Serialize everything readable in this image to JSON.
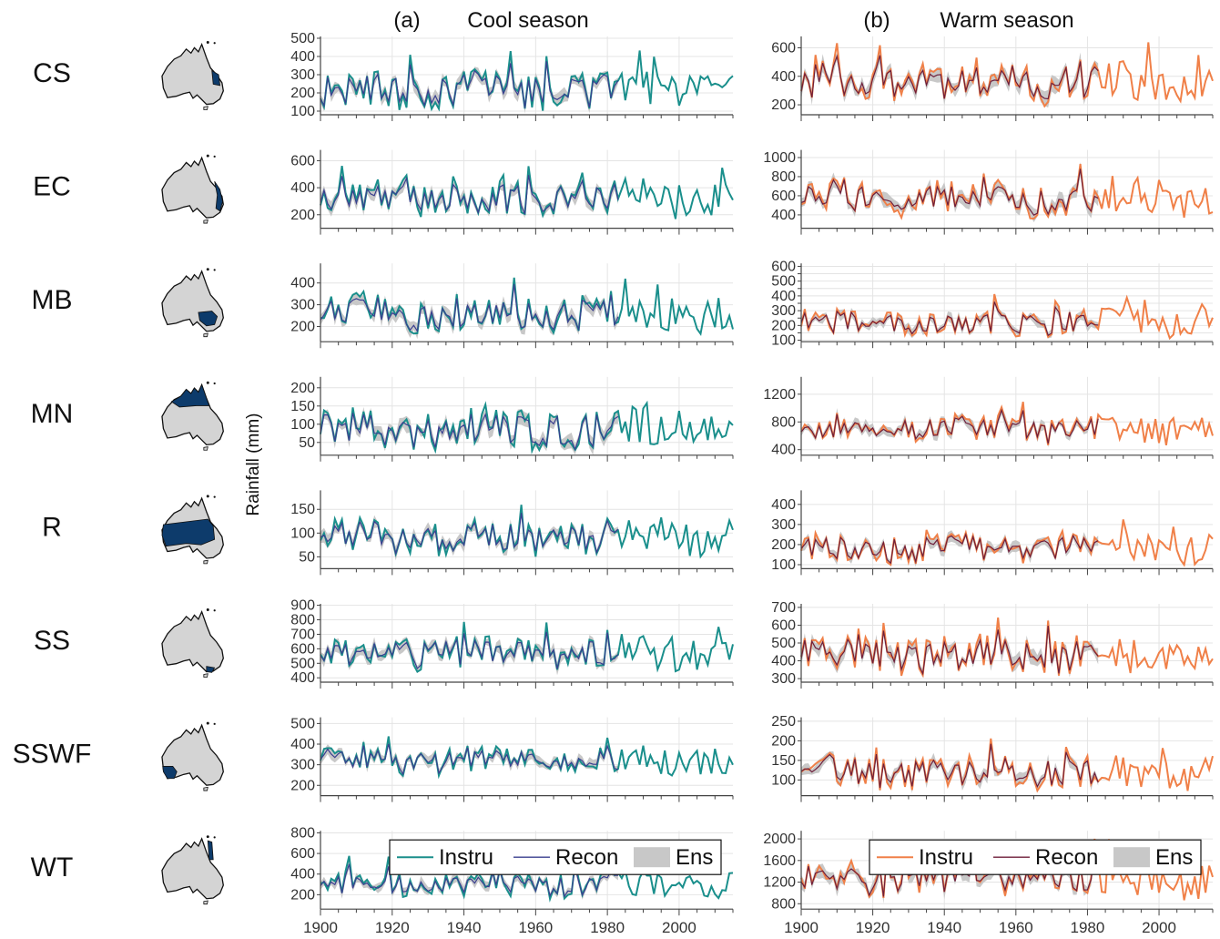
{
  "figure": {
    "panel_a": {
      "letter": "(a)",
      "title": "Cool season"
    },
    "panel_b": {
      "letter": "(b)",
      "title": "Warm season"
    },
    "y_axis_label": "Rainfall (mm)",
    "x_ticks": [
      "1900",
      "1920",
      "1940",
      "1960",
      "1980",
      "2000"
    ],
    "colors": {
      "cool_instru": "#1a8f8c",
      "cool_recon": "#3a3f8f",
      "warm_instru": "#f08048",
      "warm_recon": "#6e1e3a",
      "ens_band": "#c8c8c8",
      "region_highlight": "#0d3b6b",
      "map_fill": "#d4d4d4",
      "grid": "#e4e4e4",
      "axis": "#444444"
    },
    "legend_cool": {
      "instru": "Instru",
      "recon": "Recon",
      "ens": "Ens"
    },
    "legend_warm": {
      "instru": "Instru",
      "recon": "Recon",
      "ens": "Ens"
    }
  },
  "chart_data": [
    {
      "type": "line",
      "panel": "Cool season",
      "title": "Cool season",
      "ylabel": "Rainfall (mm)",
      "x_range": [
        1900,
        2015
      ],
      "grid": true,
      "legend_placement": "bottom-right (WT row)",
      "series_names": [
        "Instru",
        "Recon",
        "Ens"
      ],
      "regions": [
        {
          "region": "CS",
          "yticks": [
            100,
            200,
            300,
            400,
            500
          ],
          "ylim": [
            80,
            510
          ],
          "instru_mean": 215,
          "instru_amp": 85,
          "recon_mean": 210
        },
        {
          "region": "EC",
          "yticks": [
            200,
            400,
            600
          ],
          "ylim": [
            100,
            680
          ],
          "instru_mean": 320,
          "instru_amp": 110,
          "recon_mean": 310
        },
        {
          "region": "MB",
          "yticks": [
            200,
            300,
            400
          ],
          "ylim": [
            130,
            490
          ],
          "instru_mean": 265,
          "instru_amp": 70,
          "recon_mean": 260
        },
        {
          "region": "MN",
          "yticks": [
            50,
            100,
            150,
            200
          ],
          "ylim": [
            15,
            230
          ],
          "instru_mean": 85,
          "instru_amp": 45,
          "recon_mean": 80
        },
        {
          "region": "R",
          "yticks": [
            50,
            100,
            150
          ],
          "ylim": [
            25,
            190
          ],
          "instru_mean": 90,
          "instru_amp": 30,
          "recon_mean": 88
        },
        {
          "region": "SS",
          "yticks": [
            400,
            500,
            600,
            700,
            800,
            900
          ],
          "ylim": [
            370,
            910
          ],
          "instru_mean": 570,
          "instru_amp": 95,
          "recon_mean": 565
        },
        {
          "region": "SSWF",
          "yticks": [
            200,
            300,
            400,
            500
          ],
          "ylim": [
            150,
            530
          ],
          "instru_mean": 320,
          "instru_amp": 55,
          "recon_mean": 318
        },
        {
          "region": "WT",
          "yticks": [
            200,
            400,
            600,
            800
          ],
          "ylim": [
            60,
            820
          ],
          "instru_mean": 300,
          "instru_amp": 110,
          "recon_mean": 290
        }
      ]
    },
    {
      "type": "line",
      "panel": "Warm season",
      "title": "Warm season",
      "ylabel": "Rainfall (mm)",
      "x_range": [
        1900,
        2015
      ],
      "grid": true,
      "legend_placement": "bottom-right (WT row)",
      "series_names": [
        "Instru",
        "Recon",
        "Ens"
      ],
      "regions": [
        {
          "region": "CS",
          "yticks": [
            200,
            400,
            600
          ],
          "ylim": [
            130,
            680
          ],
          "instru_mean": 360,
          "instru_amp": 120,
          "recon_mean": 350
        },
        {
          "region": "EC",
          "yticks": [
            400,
            600,
            800,
            1000
          ],
          "ylim": [
            260,
            1080
          ],
          "instru_mean": 580,
          "instru_amp": 160,
          "recon_mean": 570
        },
        {
          "region": "MB",
          "yticks": [
            100,
            150,
            200,
            250,
            300,
            350,
            400,
            450,
            500,
            550,
            600
          ],
          "ytick_labels": [
            "100",
            "",
            "200",
            "",
            "300",
            "",
            "400",
            "",
            "500",
            "",
            "600"
          ],
          "ylim": [
            90,
            620
          ],
          "instru_mean": 220,
          "instru_amp": 75,
          "recon_mean": 215
        },
        {
          "region": "MN",
          "yticks": [
            400,
            800,
            1200
          ],
          "ylim": [
            320,
            1450
          ],
          "instru_mean": 700,
          "instru_amp": 170,
          "recon_mean": 690
        },
        {
          "region": "R",
          "yticks": [
            100,
            200,
            300,
            400
          ],
          "ylim": [
            80,
            470
          ],
          "instru_mean": 180,
          "instru_amp": 60,
          "recon_mean": 175
        },
        {
          "region": "SS",
          "yticks": [
            300,
            400,
            500,
            600,
            700
          ],
          "ylim": [
            280,
            720
          ],
          "instru_mean": 430,
          "instru_amp": 90,
          "recon_mean": 425
        },
        {
          "region": "SSWF",
          "yticks": [
            100,
            150,
            200,
            250
          ],
          "ylim": [
            60,
            260
          ],
          "instru_mean": 120,
          "instru_amp": 35,
          "recon_mean": 118
        },
        {
          "region": "WT",
          "yticks": [
            800,
            1200,
            1600,
            2000
          ],
          "ylim": [
            700,
            2150
          ],
          "instru_mean": 1250,
          "instru_amp": 280,
          "recon_mean": 1230
        }
      ]
    }
  ]
}
